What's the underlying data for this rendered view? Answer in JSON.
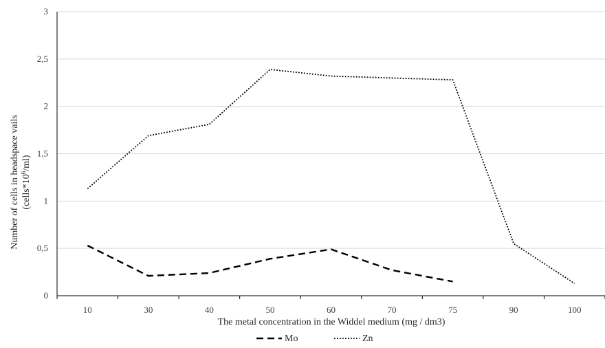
{
  "chart_data": {
    "type": "line",
    "categories": [
      "10",
      "30",
      "40",
      "50",
      "60",
      "70",
      "75",
      "90",
      "100"
    ],
    "series": [
      {
        "name": "Mo",
        "values": [
          0.53,
          0.21,
          0.24,
          0.39,
          0.49,
          0.27,
          0.15,
          null,
          null
        ],
        "dash": "10,6",
        "width": 2.4
      },
      {
        "name": "Zn",
        "values": [
          1.13,
          1.69,
          1.81,
          2.39,
          2.32,
          2.3,
          2.28,
          0.55,
          0.13
        ],
        "dash": "1.8,2.2",
        "width": 1.8
      }
    ],
    "y_ticks": [
      "0",
      "0,5",
      "1",
      "1,5",
      "2",
      "2,5",
      "3"
    ],
    "ylim": [
      0,
      3
    ],
    "xlabel": "The metal concentration in the Widdel medium (mg / dm3)",
    "ylabel_line1": "Number of cells in headspace vails",
    "ylabel_line2_pre": "(cells*10",
    "ylabel_line2_sup": "6",
    "ylabel_line2_post": "/ml)",
    "grid": true,
    "legend": "bottom",
    "colors": {
      "line": "#000000",
      "grid": "#d9d9d9",
      "axis": "#000000"
    }
  }
}
